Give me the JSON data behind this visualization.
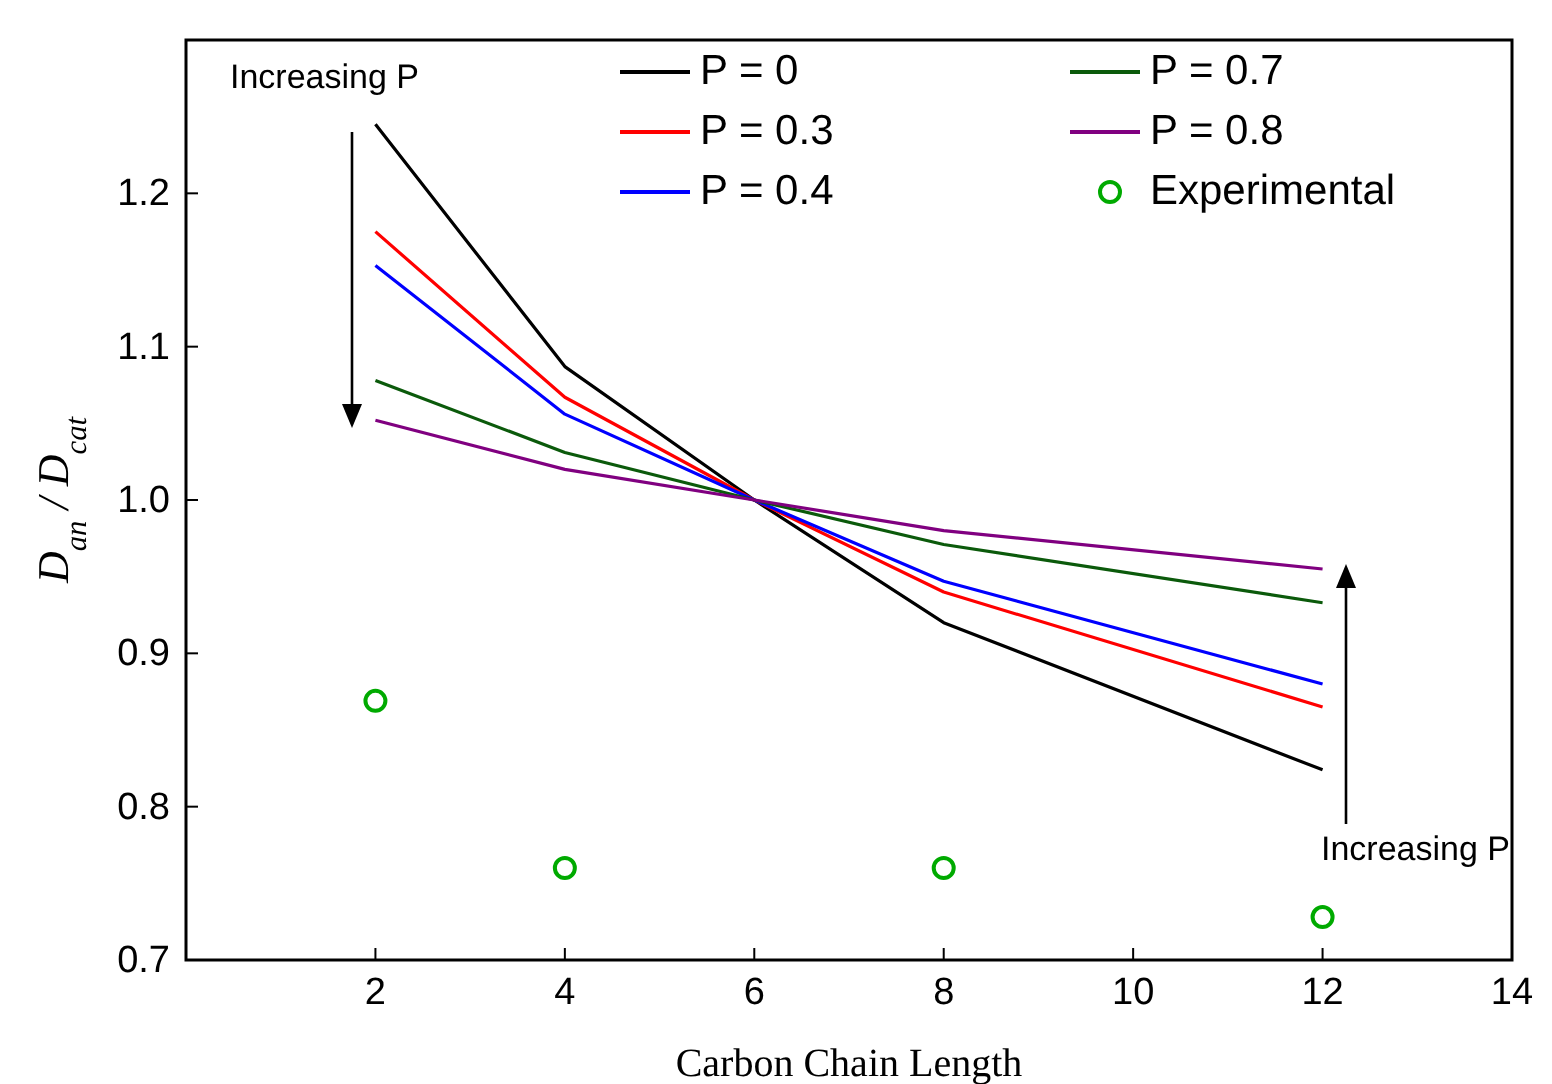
{
  "chart_data": {
    "type": "line",
    "xlabel": "Carbon Chain Length",
    "ylabel": "D$_{an}$ / D$_{cat}$",
    "xlim": [
      0,
      14
    ],
    "xticks": [
      2,
      4,
      6,
      8,
      10,
      12,
      14
    ],
    "ylim": [
      0.7,
      1.3
    ],
    "yticks": [
      0.7,
      0.8,
      0.9,
      {
        "value": 1,
        "label": "1.0"
      },
      1.1,
      1.2
    ],
    "x": [
      2,
      4,
      6,
      8,
      12
    ],
    "legend": "top",
    "grid": false,
    "line_style": "solid",
    "series": [
      {
        "name": "P = 0",
        "color": "#000000",
        "values": [
          1.245,
          1.087,
          1.0,
          0.92,
          0.824
        ]
      },
      {
        "name": "P = 0.3",
        "color": "#ff0000",
        "values": [
          1.175,
          1.067,
          1.0,
          0.94,
          0.865
        ]
      },
      {
        "name": "P = 0.4",
        "color": "#0000ff",
        "values": [
          1.153,
          1.056,
          1.0,
          0.947,
          0.88
        ]
      },
      {
        "name": "P = 0.7",
        "color": "#0b5a0b",
        "values": [
          1.078,
          1.031,
          1.0,
          0.971,
          0.933
        ]
      },
      {
        "name": "P = 0.8",
        "color": "#800080",
        "values": [
          1.052,
          1.02,
          1.0,
          0.98,
          0.955
        ]
      },
      {
        "name": "Experimental",
        "color": "#00aa00",
        "type": "scatter",
        "marker": "circle",
        "x": [
          2,
          4,
          8,
          12
        ],
        "values": [
          0.869,
          0.76,
          0.76,
          0.728
        ]
      }
    ],
    "annotations": [
      "Increasing P",
      "Increasing P"
    ]
  }
}
